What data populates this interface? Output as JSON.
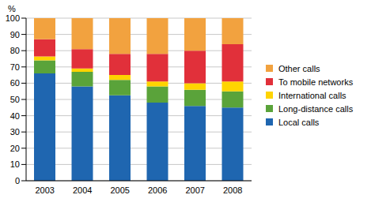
{
  "chart_data": {
    "type": "bar",
    "stacked": true,
    "y_label": "%",
    "categories": [
      "2003",
      "2004",
      "2005",
      "2006",
      "2007",
      "2008"
    ],
    "series": [
      {
        "name": "Local calls",
        "color": "#1f66b0",
        "values": [
          66,
          58,
          52.5,
          48,
          46,
          45
        ]
      },
      {
        "name": "Long-distance calls",
        "color": "#5aa33a",
        "values": [
          8,
          9,
          9.5,
          10,
          10,
          10
        ]
      },
      {
        "name": "International calls",
        "color": "#ffd400",
        "values": [
          2.5,
          2,
          3,
          3,
          4,
          6
        ]
      },
      {
        "name": "To mobile networks",
        "color": "#e1303a",
        "values": [
          10.5,
          12,
          13,
          17,
          20,
          23
        ]
      },
      {
        "name": "Other calls",
        "color": "#f2a23f",
        "values": [
          13,
          19,
          22,
          22,
          20,
          16
        ]
      }
    ],
    "ylim": [
      0,
      100
    ],
    "yticks": [
      0,
      10,
      20,
      30,
      40,
      50,
      60,
      70,
      80,
      90,
      100
    ],
    "grid": true,
    "legend": "right"
  }
}
